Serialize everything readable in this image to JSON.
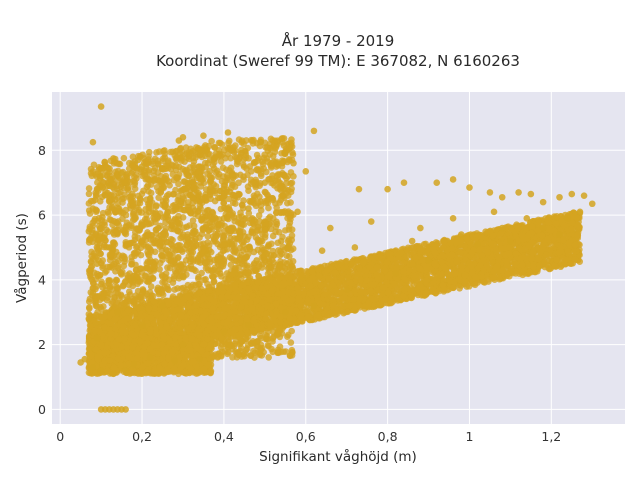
{
  "chart_data": {
    "type": "scatter",
    "title_lines": [
      "År 1979 - 2019",
      "Koordinat (Sweref 99 TM): E 367082, N 6160263"
    ],
    "xlabel": "Signifikant våghöjd (m)",
    "ylabel": "Vågperiod (s)",
    "xlim": [
      -0.02,
      1.38
    ],
    "ylim": [
      -0.45,
      9.8
    ],
    "xticks": [
      0,
      0.2,
      0.4,
      0.6,
      0.8,
      1,
      1.2
    ],
    "xtick_labels": [
      "0",
      "0,2",
      "0,4",
      "0,6",
      "0,8",
      "1",
      "1,2"
    ],
    "yticks": [
      0,
      2,
      4,
      6,
      8
    ],
    "ytick_labels": [
      "0",
      "2",
      "4",
      "6",
      "8"
    ],
    "grid": true,
    "legend": "none",
    "colors": {
      "marker": "#d4a420",
      "plot_bg": "#e5e5f0",
      "grid": "#ffffff"
    },
    "series": [
      {
        "points": [
          [
            0.1,
            9.35
          ],
          [
            0.08,
            8.25
          ],
          [
            0.13,
            7.75
          ],
          [
            0.19,
            7.7
          ],
          [
            0.62,
            8.6
          ],
          [
            0.41,
            8.55
          ],
          [
            0.35,
            8.45
          ],
          [
            0.3,
            8.4
          ],
          [
            0.29,
            8.3
          ],
          [
            0.49,
            8.25
          ],
          [
            0.55,
            7.9
          ],
          [
            0.57,
            7.6
          ],
          [
            0.6,
            7.35
          ],
          [
            0.53,
            7.6
          ],
          [
            0.5,
            7.0
          ],
          [
            0.73,
            6.8
          ],
          [
            0.8,
            6.8
          ],
          [
            0.84,
            7.0
          ],
          [
            0.92,
            7.0
          ],
          [
            0.96,
            7.1
          ],
          [
            1.0,
            6.85
          ],
          [
            1.05,
            6.7
          ],
          [
            1.08,
            6.55
          ],
          [
            1.12,
            6.7
          ],
          [
            1.15,
            6.65
          ],
          [
            1.18,
            6.4
          ],
          [
            1.22,
            6.55
          ],
          [
            1.25,
            6.65
          ],
          [
            1.28,
            6.6
          ],
          [
            1.3,
            6.35
          ],
          [
            1.27,
            6.1
          ],
          [
            1.24,
            5.9
          ],
          [
            1.22,
            5.4
          ],
          [
            1.18,
            5.6
          ],
          [
            1.1,
            5.2
          ],
          [
            1.02,
            5.1
          ],
          [
            0.9,
            4.6
          ],
          [
            0.82,
            4.2
          ],
          [
            0.7,
            3.7
          ],
          [
            0.62,
            3.2
          ],
          [
            0.55,
            3.0
          ],
          [
            0.46,
            2.6
          ],
          [
            0.4,
            2.4
          ],
          [
            0.3,
            2.0
          ],
          [
            0.22,
            1.6
          ],
          [
            0.18,
            1.4
          ],
          [
            0.16,
            1.2
          ],
          [
            0.13,
            1.1
          ],
          [
            0.1,
            1.2
          ],
          [
            0.08,
            1.3
          ],
          [
            0.05,
            1.45
          ],
          [
            0.06,
            1.55
          ],
          [
            0.09,
            2.2
          ],
          [
            0.07,
            2.8
          ],
          [
            0.08,
            3.6
          ],
          [
            0.09,
            4.5
          ],
          [
            0.07,
            5.5
          ],
          [
            0.08,
            6.2
          ],
          [
            0.09,
            6.8
          ],
          [
            0.1,
            7.2
          ],
          [
            0.12,
            6.9
          ],
          [
            0.15,
            7.3
          ],
          [
            0.2,
            7.5
          ],
          [
            0.22,
            6.5
          ],
          [
            0.26,
            6.0
          ],
          [
            0.33,
            5.5
          ],
          [
            0.4,
            5.9
          ],
          [
            0.46,
            6.2
          ],
          [
            0.58,
            6.1
          ],
          [
            0.66,
            5.6
          ],
          [
            0.76,
            5.8
          ],
          [
            0.88,
            5.6
          ],
          [
            0.96,
            5.9
          ],
          [
            1.06,
            6.1
          ],
          [
            1.14,
            5.9
          ],
          [
            0.1,
            0.0
          ],
          [
            0.11,
            0.0
          ],
          [
            0.12,
            0.0
          ],
          [
            0.13,
            0.0
          ],
          [
            0.14,
            0.0
          ],
          [
            0.15,
            0.0
          ],
          [
            0.16,
            0.0
          ],
          [
            0.28,
            1.5
          ],
          [
            0.34,
            1.55
          ],
          [
            0.25,
            3.2
          ],
          [
            0.3,
            4.1
          ],
          [
            0.36,
            4.8
          ],
          [
            0.42,
            5.1
          ],
          [
            0.48,
            4.6
          ],
          [
            0.54,
            5.2
          ],
          [
            0.64,
            4.9
          ],
          [
            0.72,
            5.0
          ],
          [
            0.86,
            5.2
          ],
          [
            0.98,
            5.4
          ],
          [
            1.08,
            5.6
          ],
          [
            0.2,
            2.6
          ],
          [
            0.14,
            3.0
          ],
          [
            0.18,
            4.0
          ],
          [
            0.12,
            5.0
          ],
          [
            0.24,
            5.6
          ]
        ]
      }
    ]
  }
}
